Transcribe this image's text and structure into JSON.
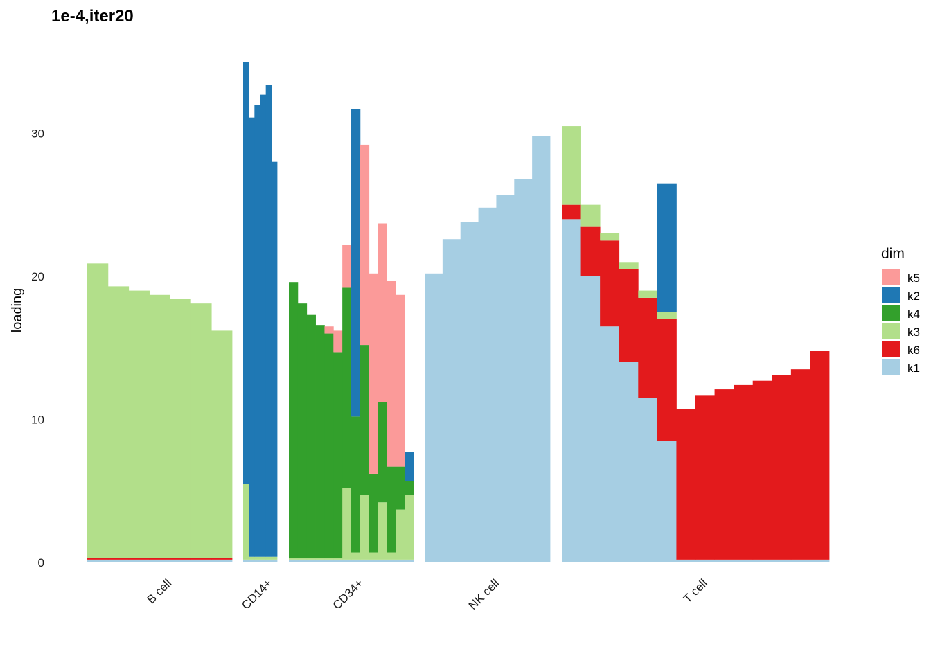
{
  "chart_data": {
    "type": "bar",
    "stacked": true,
    "title": "1e-4,iter20",
    "xlabel": "",
    "ylabel": "loading",
    "ylim": [
      0,
      35.2
    ],
    "yticks": [
      0,
      10,
      20,
      30
    ],
    "grid": false,
    "legend_position": "right",
    "legend_title": "dim",
    "legend": [
      {
        "name": "k5",
        "color": "#fb9a99"
      },
      {
        "name": "k2",
        "color": "#1f78b4"
      },
      {
        "name": "k4",
        "color": "#33a02c"
      },
      {
        "name": "k3",
        "color": "#b2df8a"
      },
      {
        "name": "k6",
        "color": "#e31a1c"
      },
      {
        "name": "k1",
        "color": "#a6cee3"
      }
    ],
    "groups": [
      {
        "name": "B cell",
        "segments": [
          {
            "dim": "k1",
            "values": [
              0.2,
              0.2,
              0.2,
              0.2,
              0.2,
              0.2,
              0.2
            ]
          },
          {
            "dim": "k6",
            "values": [
              0.1,
              0.1,
              0.1,
              0.1,
              0.1,
              0.1,
              0.1
            ]
          },
          {
            "dim": "k3",
            "values": [
              20.6,
              19.0,
              18.7,
              18.4,
              18.1,
              17.8,
              15.9
            ]
          }
        ]
      },
      {
        "name": "CD14+",
        "segments": [
          {
            "dim": "k1",
            "values": [
              0.2,
              0.2,
              0.2,
              0.2,
              0.2,
              0.2
            ]
          },
          {
            "dim": "k3",
            "values": [
              5.3,
              0.2,
              0.2,
              0.2,
              0.2,
              0.2
            ]
          },
          {
            "dim": "k2",
            "values": [
              29.5,
              30.7,
              31.6,
              32.3,
              33.0,
              27.6
            ]
          }
        ]
      },
      {
        "name": "CD34+",
        "segments": [
          {
            "dim": "k1",
            "values": [
              0.2,
              0.2,
              0.2,
              0.2,
              0.2,
              0.2,
              0.2,
              0.2,
              0.2,
              0.2,
              0.2,
              0.2,
              0.2,
              0.2
            ]
          },
          {
            "dim": "k3",
            "values": [
              0.1,
              0.1,
              0.1,
              0.1,
              0.1,
              0.1,
              5.0,
              0.5,
              4.5,
              0.5,
              4.0,
              0.5,
              3.5,
              4.5
            ]
          },
          {
            "dim": "k4",
            "values": [
              19.3,
              17.8,
              17.0,
              16.3,
              15.7,
              14.4,
              14.0,
              9.5,
              10.5,
              5.5,
              7.0,
              6.0,
              3.0,
              1.0
            ]
          },
          {
            "dim": "k2",
            "values": [
              0,
              0,
              0,
              0,
              0,
              0,
              0,
              21.5,
              0,
              0,
              0,
              0,
              0,
              2.0
            ]
          },
          {
            "dim": "k5",
            "values": [
              0,
              0,
              0,
              0,
              0.5,
              1.5,
              3.0,
              0,
              14.0,
              14.0,
              12.5,
              13.0,
              12.0,
              0
            ]
          }
        ]
      },
      {
        "name": "NK cell",
        "segments": [
          {
            "dim": "k1",
            "values": [
              20.2,
              22.6,
              23.8,
              24.8,
              25.7,
              26.8,
              29.8
            ]
          }
        ]
      },
      {
        "name": "T cell",
        "segments": [
          {
            "dim": "k1",
            "values": [
              24.0,
              20.0,
              16.5,
              14.0,
              11.5,
              8.5,
              0.2,
              0.2,
              0.2,
              0.2,
              0.2,
              0.2,
              0.2,
              0.2
            ]
          },
          {
            "dim": "k6",
            "values": [
              1.0,
              3.5,
              6.0,
              6.5,
              7.0,
              8.5,
              10.5,
              11.5,
              11.9,
              12.2,
              12.5,
              12.9,
              13.3,
              14.6
            ]
          },
          {
            "dim": "k3",
            "values": [
              5.5,
              1.5,
              0.5,
              0.5,
              0.5,
              0.5,
              0,
              0,
              0,
              0,
              0,
              0,
              0,
              0
            ]
          },
          {
            "dim": "k2",
            "values": [
              0,
              0,
              0,
              0,
              0,
              9.0,
              0,
              0,
              0,
              0,
              0,
              0,
              0,
              0
            ]
          }
        ]
      }
    ]
  }
}
